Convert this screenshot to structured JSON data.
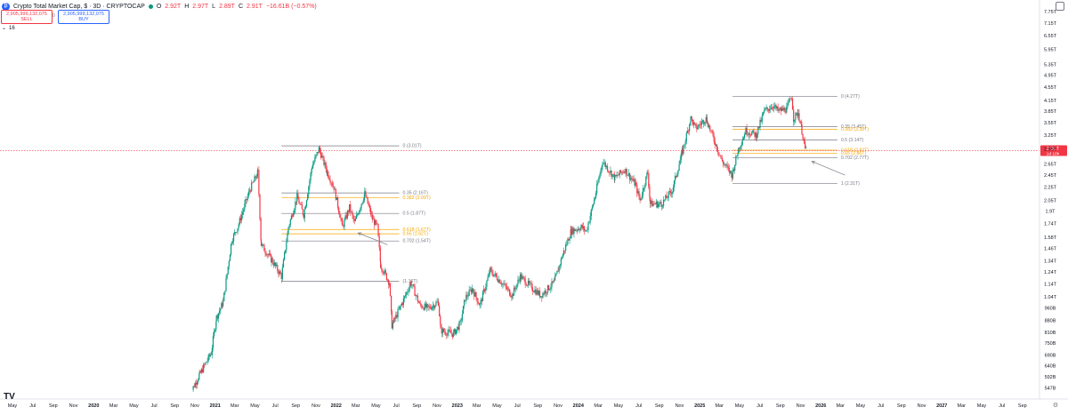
{
  "header": {
    "symbol_icon": "bitcoin-icon",
    "title": "Crypto Total Market Cap, $ · 3D · CRYPTOCAP",
    "ohlc": [
      {
        "k": "O",
        "v": "2.92T"
      },
      {
        "k": "H",
        "v": "2.97T"
      },
      {
        "k": "L",
        "v": "2.89T"
      },
      {
        "k": "C",
        "v": "2.91T"
      }
    ],
    "change": "−16.61B (−0.57%)",
    "sell_price": "2,905,999,132,075",
    "sell_label": "SELL",
    "spread": "0",
    "buy_price": "2,905,999,132,075",
    "buy_label": "BUY",
    "volume_toggle": "16"
  },
  "chart_data": {
    "type": "candlestick",
    "y_scale": "log",
    "ylim": [
      532,
      8000
    ],
    "y_unit": "B",
    "y_ticks": [
      "7.75T",
      "7.15T",
      "6.55T",
      "5.95T",
      "5.35T",
      "4.95T",
      "4.55T",
      "4.15T",
      "3.85T",
      "3.55T",
      "3.25T",
      "2.95T",
      "2.65T",
      "2.45T",
      "2.25T",
      "2.05T",
      "1.9T",
      "1.74T",
      "1.58T",
      "1.46T",
      "1.34T",
      "1.24T",
      "1.14T",
      "1.04T",
      "960B",
      "880B",
      "810B",
      "750B",
      "690B",
      "640B",
      "592B",
      "547B"
    ],
    "y_tick_values": [
      7750,
      7150,
      6550,
      5950,
      5350,
      4950,
      4550,
      4150,
      3850,
      3550,
      3250,
      2950,
      2650,
      2450,
      2250,
      2050,
      1900,
      1740,
      1580,
      1460,
      1340,
      1240,
      1140,
      1040,
      960,
      880,
      810,
      750,
      690,
      640,
      592,
      547
    ],
    "x_range": [
      "2019-05-01",
      "2027-10-01"
    ],
    "x_ticks": [
      {
        "label": "May",
        "date": "2019-05-01"
      },
      {
        "label": "Jul",
        "date": "2019-07-01"
      },
      {
        "label": "Sep",
        "date": "2019-09-01"
      },
      {
        "label": "Nov",
        "date": "2019-11-01"
      },
      {
        "label": "2020",
        "date": "2020-01-01"
      },
      {
        "label": "Mar",
        "date": "2020-03-01"
      },
      {
        "label": "May",
        "date": "2020-05-01"
      },
      {
        "label": "Jul",
        "date": "2020-07-01"
      },
      {
        "label": "Sep",
        "date": "2020-09-01"
      },
      {
        "label": "Nov",
        "date": "2020-11-01"
      },
      {
        "label": "2021",
        "date": "2021-01-01"
      },
      {
        "label": "Mar",
        "date": "2021-03-01"
      },
      {
        "label": "May",
        "date": "2021-05-01"
      },
      {
        "label": "Jul",
        "date": "2021-07-01"
      },
      {
        "label": "Sep",
        "date": "2021-09-01"
      },
      {
        "label": "Nov",
        "date": "2021-11-01"
      },
      {
        "label": "2022",
        "date": "2022-01-01"
      },
      {
        "label": "Mar",
        "date": "2022-03-01"
      },
      {
        "label": "May",
        "date": "2022-05-01"
      },
      {
        "label": "Jul",
        "date": "2022-07-01"
      },
      {
        "label": "Sep",
        "date": "2022-09-01"
      },
      {
        "label": "Nov",
        "date": "2022-11-01"
      },
      {
        "label": "2023",
        "date": "2023-01-01"
      },
      {
        "label": "Mar",
        "date": "2023-03-01"
      },
      {
        "label": "May",
        "date": "2023-05-01"
      },
      {
        "label": "Jul",
        "date": "2023-07-01"
      },
      {
        "label": "Sep",
        "date": "2023-09-01"
      },
      {
        "label": "Nov",
        "date": "2023-11-01"
      },
      {
        "label": "2024",
        "date": "2024-01-01"
      },
      {
        "label": "Mar",
        "date": "2024-03-01"
      },
      {
        "label": "May",
        "date": "2024-05-01"
      },
      {
        "label": "Jul",
        "date": "2024-07-01"
      },
      {
        "label": "Sep",
        "date": "2024-09-01"
      },
      {
        "label": "Nov",
        "date": "2024-11-01"
      },
      {
        "label": "2025",
        "date": "2025-01-01"
      },
      {
        "label": "Mar",
        "date": "2025-03-01"
      },
      {
        "label": "May",
        "date": "2025-05-01"
      },
      {
        "label": "Jul",
        "date": "2025-07-01"
      },
      {
        "label": "Sep",
        "date": "2025-09-01"
      },
      {
        "label": "Nov",
        "date": "2025-11-01"
      },
      {
        "label": "2026",
        "date": "2026-01-01"
      },
      {
        "label": "Mar",
        "date": "2026-03-01"
      },
      {
        "label": "May",
        "date": "2026-05-01"
      },
      {
        "label": "Jul",
        "date": "2026-07-01"
      },
      {
        "label": "Sep",
        "date": "2026-09-01"
      },
      {
        "label": "Nov",
        "date": "2026-11-01"
      },
      {
        "label": "2027",
        "date": "2027-01-01"
      },
      {
        "label": "Mar",
        "date": "2027-03-01"
      },
      {
        "label": "May",
        "date": "2027-05-01"
      },
      {
        "label": "Jul",
        "date": "2027-07-01"
      },
      {
        "label": "Sep",
        "date": "2027-09-01"
      }
    ],
    "price_path": [
      [
        "2020-10-15",
        520
      ],
      [
        "2020-11-15",
        600
      ],
      [
        "2020-12-20",
        700
      ],
      [
        "2021-01-05",
        900
      ],
      [
        "2021-01-25",
        1000
      ],
      [
        "2021-02-20",
        1550
      ],
      [
        "2021-03-10",
        1700
      ],
      [
        "2021-04-15",
        2200
      ],
      [
        "2021-05-10",
        2500
      ],
      [
        "2021-05-20",
        1500
      ],
      [
        "2021-06-20",
        1350
      ],
      [
        "2021-07-20",
        1200
      ],
      [
        "2021-08-10",
        1700
      ],
      [
        "2021-09-05",
        2100
      ],
      [
        "2021-09-25",
        1850
      ],
      [
        "2021-10-20",
        2600
      ],
      [
        "2021-11-10",
        2950
      ],
      [
        "2021-12-05",
        2500
      ],
      [
        "2021-12-25",
        2250
      ],
      [
        "2022-01-20",
        1700
      ],
      [
        "2022-02-10",
        1950
      ],
      [
        "2022-02-25",
        1750
      ],
      [
        "2022-03-28",
        2150
      ],
      [
        "2022-04-20",
        1800
      ],
      [
        "2022-05-05",
        1700
      ],
      [
        "2022-05-15",
        1300
      ],
      [
        "2022-06-10",
        1150
      ],
      [
        "2022-06-18",
        850
      ],
      [
        "2022-07-20",
        1000
      ],
      [
        "2022-08-14",
        1150
      ],
      [
        "2022-09-10",
        980
      ],
      [
        "2022-10-05",
        960
      ],
      [
        "2022-11-05",
        1000
      ],
      [
        "2022-11-12",
        820
      ],
      [
        "2022-12-20",
        800
      ],
      [
        "2023-01-10",
        860
      ],
      [
        "2023-01-25",
        1030
      ],
      [
        "2023-02-15",
        1100
      ],
      [
        "2023-03-10",
        980
      ],
      [
        "2023-04-10",
        1250
      ],
      [
        "2023-05-15",
        1150
      ],
      [
        "2023-06-15",
        1050
      ],
      [
        "2023-07-10",
        1200
      ],
      [
        "2023-08-17",
        1100
      ],
      [
        "2023-09-10",
        1050
      ],
      [
        "2023-10-20",
        1150
      ],
      [
        "2023-11-15",
        1400
      ],
      [
        "2023-12-10",
        1650
      ],
      [
        "2024-01-10",
        1700
      ],
      [
        "2024-01-25",
        1650
      ],
      [
        "2024-02-20",
        2100
      ],
      [
        "2024-03-14",
        2700
      ],
      [
        "2024-04-20",
        2400
      ],
      [
        "2024-05-20",
        2550
      ],
      [
        "2024-06-20",
        2300
      ],
      [
        "2024-07-05",
        2050
      ],
      [
        "2024-07-28",
        2500
      ],
      [
        "2024-08-05",
        2000
      ],
      [
        "2024-09-08",
        2000
      ],
      [
        "2024-10-10",
        2200
      ],
      [
        "2024-11-10",
        2900
      ],
      [
        "2024-12-05",
        3650
      ],
      [
        "2024-12-20",
        3400
      ],
      [
        "2025-01-20",
        3650
      ],
      [
        "2025-02-10",
        3200
      ],
      [
        "2025-03-10",
        2700
      ],
      [
        "2025-04-08",
        2450
      ],
      [
        "2025-04-28",
        2950
      ],
      [
        "2025-05-20",
        3350
      ],
      [
        "2025-06-20",
        3250
      ],
      [
        "2025-07-15",
        3850
      ],
      [
        "2025-08-10",
        4000
      ],
      [
        "2025-08-25",
        3850
      ],
      [
        "2025-09-20",
        3900
      ],
      [
        "2025-10-05",
        4270
      ],
      [
        "2025-10-11",
        3650
      ],
      [
        "2025-10-25",
        3800
      ],
      [
        "2025-11-05",
        3350
      ],
      [
        "2025-11-15",
        2950
      ],
      [
        "2025-11-19",
        2910
      ]
    ],
    "fib_sets": [
      {
        "x_start": "2021-07-20",
        "x_end": "2022-07-10",
        "levels": [
          {
            "label": "0 (3.01T)",
            "value": 3010,
            "color": "#787b86"
          },
          {
            "label": "0.35 (2.16T)",
            "value": 2160,
            "color": "#787b86"
          },
          {
            "label": "0.382 (2.09T)",
            "value": 2090,
            "color": "#f7a600"
          },
          {
            "label": "0.5 (1.87T)",
            "value": 1870,
            "color": "#787b86"
          },
          {
            "label": "0.618 (1.67T)",
            "value": 1670,
            "color": "#f7a600"
          },
          {
            "label": "0.65 (1.62T)",
            "value": 1620,
            "color": "#f7a600"
          },
          {
            "label": "0.702 (1.54T)",
            "value": 1540,
            "color": "#787b86"
          },
          {
            "label": "(1.16T)",
            "value": 1160,
            "color": "#787b86"
          }
        ]
      },
      {
        "x_start": "2025-04-10",
        "x_end": "2026-02-20",
        "levels": [
          {
            "label": "0 (4.27T)",
            "value": 4270,
            "color": "#787b86"
          },
          {
            "label": "0.35 (3.45T)",
            "value": 3450,
            "color": "#787b86"
          },
          {
            "label": "0.382 (3.38T)",
            "value": 3380,
            "color": "#f7a600"
          },
          {
            "label": "0.5 (3.14T)",
            "value": 3140,
            "color": "#787b86"
          },
          {
            "label": "0.618 (2.92T)",
            "value": 2920,
            "color": "#f7a600"
          },
          {
            "label": "0.65 (2.86T)",
            "value": 2860,
            "color": "#f7a600"
          },
          {
            "label": "0.702 (2.77T)",
            "value": 2770,
            "color": "#787b86"
          },
          {
            "label": "1 (2.31T)",
            "value": 2310,
            "color": "#787b86"
          }
        ]
      }
    ],
    "arrows": [
      {
        "from": [
          "2022-06-05",
          1500
        ],
        "to": [
          "2022-03-08",
          1630
        ]
      },
      {
        "from": [
          "2026-03-15",
          2450
        ],
        "to": [
          "2025-12-05",
          2700
        ]
      }
    ],
    "last_price": {
      "value": 2910,
      "label": "2.91T",
      "countdown": "1d 10h"
    },
    "colors": {
      "up": "#089981",
      "down": "#f23645",
      "fib_main": "#787b86",
      "fib_golden": "#f7a600",
      "price_line": "#f23645"
    }
  },
  "footer": {
    "logo_text": "TV",
    "settings_icon": "gear-icon"
  }
}
